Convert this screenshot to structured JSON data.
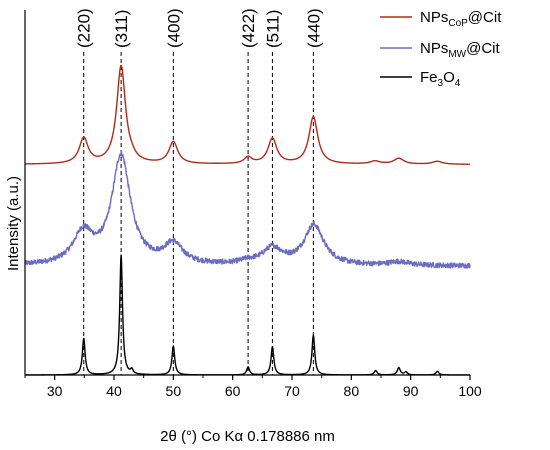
{
  "chart_data": {
    "type": "line",
    "title": "",
    "xlabel": "2θ (°) Co Kα 0.178886 nm",
    "ylabel": "Intensity (a.u.)",
    "xlim": [
      25,
      100
    ],
    "xticks": [
      30,
      40,
      50,
      60,
      70,
      80,
      90,
      100
    ],
    "y_ticks_shown": false,
    "grid": false,
    "legend_position": "top-right",
    "reference_lines": [
      {
        "x": 34.9,
        "label": "(220)"
      },
      {
        "x": 41.2,
        "label": "(311)"
      },
      {
        "x": 50.0,
        "label": "(400)"
      },
      {
        "x": 62.6,
        "label": "(422)"
      },
      {
        "x": 66.7,
        "label": "(511)"
      },
      {
        "x": 73.6,
        "label": "(440)"
      }
    ],
    "series": [
      {
        "name": "NPsCoP@Cit",
        "legend": {
          "main": "NPs",
          "sub": "CoP",
          "tail": "@Cit"
        },
        "color": "#b22a14",
        "offset": 0.58,
        "baseline": 0.0,
        "noise": 0.0,
        "peaks": [
          {
            "x": 34.9,
            "h": 0.07,
            "w": 0.9
          },
          {
            "x": 41.2,
            "h": 0.27,
            "w": 0.9
          },
          {
            "x": 43.0,
            "h": 0.006,
            "w": 0.6
          },
          {
            "x": 50.0,
            "h": 0.06,
            "w": 0.9
          },
          {
            "x": 62.6,
            "h": 0.018,
            "w": 0.8
          },
          {
            "x": 66.7,
            "h": 0.07,
            "w": 0.9
          },
          {
            "x": 73.6,
            "h": 0.13,
            "w": 0.9
          },
          {
            "x": 84.0,
            "h": 0.008,
            "w": 1.0
          },
          {
            "x": 88.0,
            "h": 0.016,
            "w": 1.0
          },
          {
            "x": 94.5,
            "h": 0.008,
            "w": 1.0
          }
        ]
      },
      {
        "name": "NPsMW@Cit",
        "legend": {
          "main": "NPs",
          "sub": "MW",
          "tail": "@Cit"
        },
        "color": "#6b6cc2",
        "offset": 0.3,
        "baseline": 0.0,
        "noise": 0.007,
        "peaks": [
          {
            "x": 34.8,
            "h": 0.085,
            "w": 2.0
          },
          {
            "x": 41.2,
            "h": 0.3,
            "w": 1.9
          },
          {
            "x": 50.0,
            "h": 0.055,
            "w": 1.9
          },
          {
            "x": 62.6,
            "h": 0.008,
            "w": 1.5
          },
          {
            "x": 66.7,
            "h": 0.045,
            "w": 2.0
          },
          {
            "x": 73.7,
            "h": 0.11,
            "w": 2.0
          },
          {
            "x": 88.0,
            "h": 0.01,
            "w": 2.0
          }
        ]
      },
      {
        "name": "Fe3O4",
        "legend": {
          "main": "Fe",
          "sub": "3",
          "tail": "O",
          "sub2": "4"
        },
        "color": "#000000",
        "offset": 0.0,
        "baseline": 0.0,
        "noise": 0.0,
        "peaks": [
          {
            "x": 34.9,
            "h": 0.1,
            "w": 0.28
          },
          {
            "x": 41.2,
            "h": 0.33,
            "w": 0.28
          },
          {
            "x": 43.0,
            "h": 0.012,
            "w": 0.25
          },
          {
            "x": 50.0,
            "h": 0.08,
            "w": 0.28
          },
          {
            "x": 62.6,
            "h": 0.022,
            "w": 0.28
          },
          {
            "x": 66.7,
            "h": 0.078,
            "w": 0.28
          },
          {
            "x": 73.6,
            "h": 0.11,
            "w": 0.28
          },
          {
            "x": 84.1,
            "h": 0.012,
            "w": 0.3
          },
          {
            "x": 88.0,
            "h": 0.02,
            "w": 0.3
          },
          {
            "x": 89.2,
            "h": 0.008,
            "w": 0.3
          },
          {
            "x": 94.5,
            "h": 0.01,
            "w": 0.3
          }
        ]
      }
    ]
  }
}
